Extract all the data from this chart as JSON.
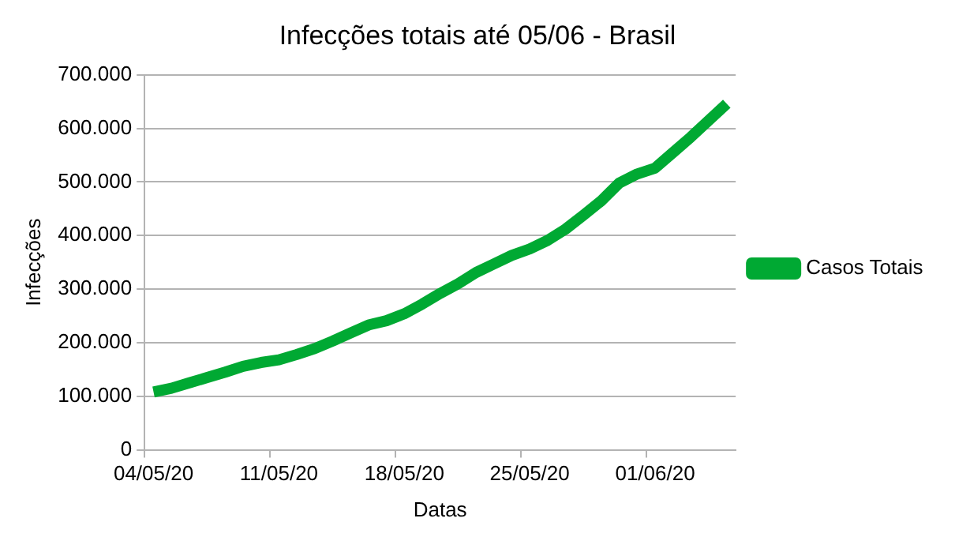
{
  "chart_data": {
    "type": "line",
    "title": "Infecções totais até 05/06 - Brasil",
    "xlabel": "Datas",
    "ylabel": "Infecções",
    "categories": [
      "04/05/20",
      null,
      null,
      null,
      null,
      null,
      null,
      "11/05/20",
      null,
      null,
      null,
      null,
      null,
      null,
      "18/05/20",
      null,
      null,
      null,
      null,
      null,
      null,
      "25/05/20",
      null,
      null,
      null,
      null,
      null,
      null,
      "01/06/20",
      null,
      null,
      null,
      null
    ],
    "series": [
      {
        "name": "Casos Totais",
        "color": "#00a933",
        "values": [
          108000,
          115000,
          125000,
          135000,
          145000,
          156000,
          163000,
          168000,
          178000,
          189000,
          203000,
          218000,
          233000,
          241000,
          254000,
          272000,
          292000,
          310000,
          331000,
          347000,
          363000,
          375000,
          391000,
          412000,
          438000,
          465000,
          498000,
          515000,
          526000,
          555000,
          584000,
          615000,
          646000
        ]
      }
    ],
    "ylim": [
      0,
      700000
    ],
    "yticks": [
      {
        "value": 0,
        "label": "0"
      },
      {
        "value": 100000,
        "label": "100.000"
      },
      {
        "value": 200000,
        "label": "200.000"
      },
      {
        "value": 300000,
        "label": "300.000"
      },
      {
        "value": 400000,
        "label": "400.000"
      },
      {
        "value": 500000,
        "label": "500.000"
      },
      {
        "value": 600000,
        "label": "600.000"
      },
      {
        "value": 700000,
        "label": "700.000"
      }
    ],
    "grid": "y",
    "legend": "right",
    "marker": "none",
    "line_style": "solid"
  }
}
